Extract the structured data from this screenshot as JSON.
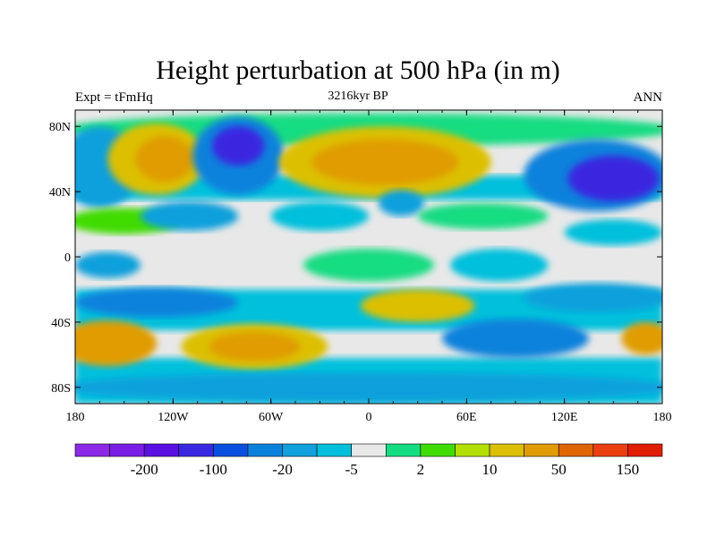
{
  "title": "Height perturbation at 500 hPa (in m)",
  "left_label": "Expt = tFmHq",
  "center_label": "3216kyr BP",
  "right_label": "ANN",
  "chart_data": {
    "type": "heatmap",
    "projection": "cylindrical-equidistant",
    "lon_range": [
      -180,
      180
    ],
    "lat_range": [
      -90,
      90
    ],
    "x_ticks": [
      {
        "value": -180,
        "label": "180"
      },
      {
        "value": -120,
        "label": "120W"
      },
      {
        "value": -60,
        "label": "60W"
      },
      {
        "value": 0,
        "label": "0"
      },
      {
        "value": 60,
        "label": "60E"
      },
      {
        "value": 120,
        "label": "120E"
      },
      {
        "value": 180,
        "label": "180"
      }
    ],
    "y_ticks": [
      {
        "value": 80,
        "label": "80N"
      },
      {
        "value": 40,
        "label": "40N"
      },
      {
        "value": 0,
        "label": "0"
      },
      {
        "value": -40,
        "label": "40S"
      },
      {
        "value": -80,
        "label": "80S"
      }
    ],
    "colorbar": {
      "colors": [
        "#8c28e6",
        "#7a1ee6",
        "#5a10e0",
        "#3a28e0",
        "#0a50e0",
        "#0a82dc",
        "#10a0dc",
        "#00c0dc",
        "#e8e8e8",
        "#14dc82",
        "#40dc00",
        "#b4e000",
        "#dcc000",
        "#e09c00",
        "#e06400",
        "#ea4010",
        "#e01e00"
      ],
      "labels": [
        {
          "boundary": 2,
          "text": "-200"
        },
        {
          "boundary": 4,
          "text": "-100"
        },
        {
          "boundary": 6,
          "text": "-20"
        },
        {
          "boundary": 8,
          "text": "-5"
        },
        {
          "boundary": 10,
          "text": "2"
        },
        {
          "boundary": 12,
          "text": "10"
        },
        {
          "boundary": 14,
          "text": "50"
        },
        {
          "boundary": 16,
          "text": "150"
        }
      ]
    },
    "field_features": [
      {
        "lon": 0,
        "lat": 78,
        "dlon": 190,
        "dlat": 10,
        "level": 9
      },
      {
        "lon": -165,
        "lat": 55,
        "dlon": 25,
        "dlat": 25,
        "level": 6
      },
      {
        "lon": -130,
        "lat": 60,
        "dlon": 30,
        "dlat": 22,
        "level": 12
      },
      {
        "lon": -125,
        "lat": 60,
        "dlon": 18,
        "dlat": 14,
        "level": 13
      },
      {
        "lon": -80,
        "lat": 62,
        "dlon": 28,
        "dlat": 24,
        "level": 5
      },
      {
        "lon": -80,
        "lat": 68,
        "dlon": 16,
        "dlat": 12,
        "level": 3
      },
      {
        "lon": 10,
        "lat": 58,
        "dlon": 65,
        "dlat": 22,
        "level": 12
      },
      {
        "lon": 10,
        "lat": 58,
        "dlon": 45,
        "dlat": 14,
        "level": 13
      },
      {
        "lon": 20,
        "lat": 33,
        "dlon": 14,
        "dlat": 8,
        "level": 6
      },
      {
        "lon": 140,
        "lat": 50,
        "dlon": 45,
        "dlat": 22,
        "level": 5
      },
      {
        "lon": 150,
        "lat": 48,
        "dlon": 28,
        "dlat": 14,
        "level": 3
      },
      {
        "lon": -150,
        "lat": 22,
        "dlon": 35,
        "dlat": 8,
        "level": 10
      },
      {
        "lon": -110,
        "lat": 25,
        "dlon": 30,
        "dlat": 9,
        "level": 6
      },
      {
        "lon": -30,
        "lat": 25,
        "dlon": 30,
        "dlat": 9,
        "level": 7
      },
      {
        "lon": 70,
        "lat": 25,
        "dlon": 40,
        "dlat": 8,
        "level": 9
      },
      {
        "lon": 150,
        "lat": 15,
        "dlon": 30,
        "dlat": 8,
        "level": 7
      },
      {
        "lon": -160,
        "lat": -5,
        "dlon": 20,
        "dlat": 8,
        "level": 6
      },
      {
        "lon": 0,
        "lat": -5,
        "dlon": 40,
        "dlat": 10,
        "level": 9
      },
      {
        "lon": 80,
        "lat": -5,
        "dlon": 30,
        "dlat": 10,
        "level": 7
      },
      {
        "lon": -130,
        "lat": -28,
        "dlon": 50,
        "dlat": 9,
        "level": 5
      },
      {
        "lon": 140,
        "lat": -25,
        "dlon": 45,
        "dlat": 9,
        "level": 6
      },
      {
        "lon": 30,
        "lat": -30,
        "dlon": 35,
        "dlat": 10,
        "level": 12
      },
      {
        "lon": -160,
        "lat": -53,
        "dlon": 30,
        "dlat": 14,
        "level": 13
      },
      {
        "lon": -70,
        "lat": -55,
        "dlon": 45,
        "dlat": 14,
        "level": 12
      },
      {
        "lon": -70,
        "lat": -55,
        "dlon": 28,
        "dlat": 9,
        "level": 13
      },
      {
        "lon": 90,
        "lat": -50,
        "dlon": 45,
        "dlat": 12,
        "level": 5
      },
      {
        "lon": 170,
        "lat": -50,
        "dlon": 15,
        "dlat": 10,
        "level": 13
      },
      {
        "lon": 0,
        "lat": -80,
        "dlon": 190,
        "dlat": 9,
        "level": 6
      }
    ]
  }
}
